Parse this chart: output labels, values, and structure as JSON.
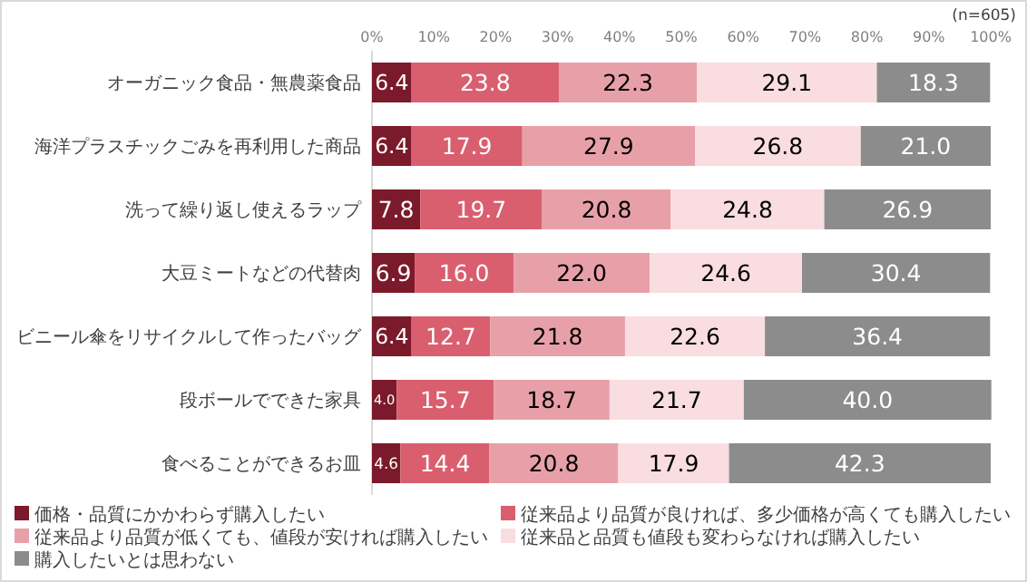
{
  "chart_data": {
    "type": "bar",
    "orientation": "horizontal",
    "stacked": true,
    "legend": "bottom",
    "annotations": [
      "(n=605)"
    ],
    "categories": [
      "オーガニック食品・無農薬食品",
      "海洋プラスチックごみを再利用した商品",
      "洗って繰り返し使えるラップ",
      "大豆ミートなどの代替肉",
      "ビニール傘をリサイクルして作ったバッグ",
      "段ボールでできた家具",
      "食べることができるお皿"
    ],
    "xlim": [
      0,
      100
    ],
    "xticks": [
      {
        "value": 0,
        "label": "0%"
      },
      {
        "value": 10,
        "label": "10%"
      },
      {
        "value": 20,
        "label": "20%"
      },
      {
        "value": 30,
        "label": "30%"
      },
      {
        "value": 40,
        "label": "40%"
      },
      {
        "value": 50,
        "label": "50%"
      },
      {
        "value": 60,
        "label": "60%"
      },
      {
        "value": 70,
        "label": "70%"
      },
      {
        "value": 80,
        "label": "80%"
      },
      {
        "value": 90,
        "label": "90%"
      },
      {
        "value": 100,
        "label": "100%"
      }
    ],
    "series": [
      {
        "name": "価格・品質にかかわらず購入したい",
        "color": "#7b1a2a",
        "values": [
          6.4,
          6.4,
          7.8,
          6.9,
          6.4,
          4.0,
          4.6
        ],
        "value_labels": [
          "6.4",
          "6.4",
          "7.8",
          "6.9",
          "6.4",
          "4.0",
          "4.6"
        ]
      },
      {
        "name": "従来品より品質が良ければ、多少価格が高くても購入したい",
        "color": "#d95f6f",
        "values": [
          23.8,
          17.9,
          19.7,
          16.0,
          12.7,
          15.7,
          14.4
        ],
        "value_labels": [
          "23.8",
          "17.9",
          "19.7",
          "16.0",
          "12.7",
          "15.7",
          "14.4"
        ]
      },
      {
        "name": "従来品より品質が低くても、値段が安ければ購入したい",
        "color": "#e8a0a8",
        "values": [
          22.3,
          27.9,
          20.8,
          22.0,
          21.8,
          18.7,
          20.8
        ],
        "value_labels": [
          "22.3",
          "27.9",
          "20.8",
          "22.0",
          "21.8",
          "18.7",
          "20.8"
        ]
      },
      {
        "name": "従来品と品質も値段も変わらなければ購入したい",
        "color": "#f9dde1",
        "values": [
          29.1,
          26.8,
          24.8,
          24.6,
          22.6,
          21.7,
          17.9
        ],
        "value_labels": [
          "29.1",
          "26.8",
          "24.8",
          "24.6",
          "22.6",
          "21.7",
          "17.9"
        ]
      },
      {
        "name": "購入したいとは思わない",
        "color": "#8c8c8c",
        "values": [
          18.3,
          21.0,
          26.9,
          30.4,
          36.4,
          40.0,
          42.3
        ],
        "value_labels": [
          "18.3",
          "21.0",
          "26.9",
          "30.4",
          "36.4",
          "40.0",
          "42.3"
        ]
      }
    ]
  }
}
